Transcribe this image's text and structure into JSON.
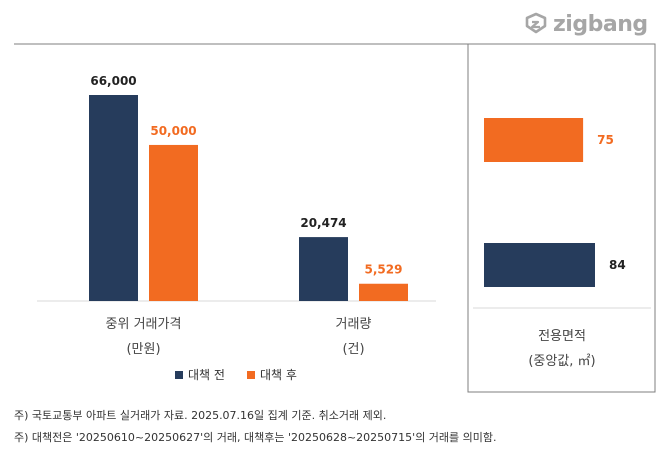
{
  "brand": {
    "name": "zigbang"
  },
  "chart_data": [
    {
      "type": "bar",
      "categories": [
        "중위 거래가격\n(만원)",
        "거래량\n(건)"
      ],
      "category_lines": [
        [
          "중위 거래가격",
          "(만원)"
        ],
        [
          "거래량",
          "(건)"
        ]
      ],
      "series": [
        {
          "name": "대책 전",
          "values": [
            66000,
            20474
          ],
          "labels": [
            "66,000",
            "20,474"
          ],
          "color": "#263c5c"
        },
        {
          "name": "대책 후",
          "values": [
            50000,
            5529
          ],
          "labels": [
            "50,000",
            "5,529"
          ],
          "color": "#f26b21"
        }
      ]
    },
    {
      "type": "bar",
      "orientation": "horizontal",
      "category_lines": [
        "전용면적",
        "(중앙값, ㎡)"
      ],
      "series": [
        {
          "name": "대책 후",
          "value": 75,
          "label": "75",
          "color": "#f26b21"
        },
        {
          "name": "대책 전",
          "value": 84,
          "label": "84",
          "color": "#263c5c"
        }
      ]
    }
  ],
  "legend": [
    {
      "label": "대책 전",
      "color": "#263c5c"
    },
    {
      "label": "대책 후",
      "color": "#f26b21"
    }
  ],
  "notes": [
    "주) 국토교통부 아파트 실거래가 자료. 2025.07.16일 집계 기준. 취소거래 제외.",
    "주) 대책전은 '20250610~20250627'의 거래, 대책후는 '20250628~20250715'의 거래를 의미함."
  ]
}
